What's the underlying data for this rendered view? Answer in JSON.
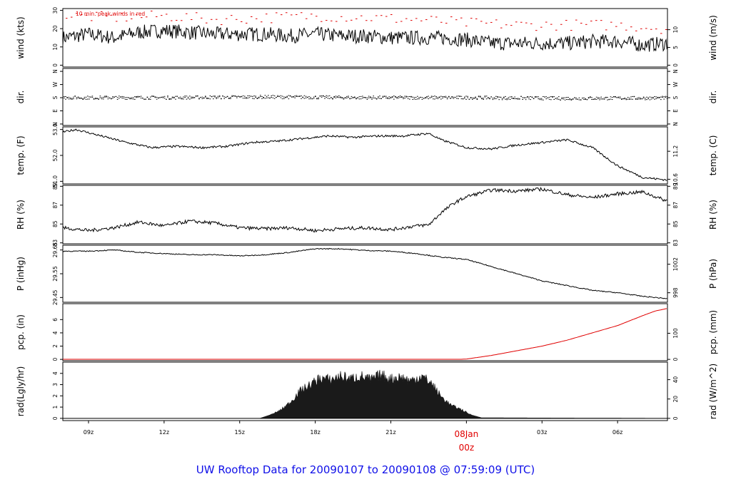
{
  "title": "UW Rooftop Data for 20090107  to  20090108 @ 07:59:09  (UTC)",
  "colors": {
    "title": "#1010e8",
    "accent": "#e00000",
    "trace": "#000000"
  },
  "x_axis": {
    "ticks": [
      "09z",
      "12z",
      "15z",
      "18z",
      "21z",
      "00z",
      "03z",
      "06z"
    ],
    "ticks_hours": [
      9,
      12,
      15,
      18,
      21,
      24,
      27,
      30
    ],
    "range_hours": [
      7.98,
      31.98
    ],
    "date_label": "08Jan",
    "date_label_time": "00z"
  },
  "chart_data": [
    {
      "type": "line",
      "key": "wind",
      "ylabel_left": "wind (kts)",
      "ylabel_right": "wind (m/s)",
      "annotation": "10 min. peak winds in red",
      "yticks_left": [
        "0",
        "10",
        "20",
        "30"
      ],
      "yticks_left_values": [
        0,
        10,
        20,
        30
      ],
      "yticks_right": [
        "0",
        "5",
        "10"
      ],
      "yticks_right_values": [
        0,
        9.72,
        19.44
      ],
      "ylim": [
        -1,
        31
      ],
      "series": [
        {
          "name": "wind speed",
          "x_hours": [
            8,
            9,
            10,
            11,
            12,
            13,
            14,
            15,
            16,
            17,
            18,
            19,
            20,
            21,
            22,
            23,
            24,
            25,
            26,
            27,
            28,
            29,
            30,
            31,
            32
          ],
          "values": [
            15,
            17,
            15,
            18,
            19,
            18,
            17,
            17,
            17,
            16,
            17,
            16,
            16,
            15,
            15,
            15,
            14,
            12,
            12,
            12,
            12,
            13,
            13,
            11,
            12
          ]
        },
        {
          "name": "10 min. peak winds",
          "x_hours": [
            8,
            10,
            12,
            14,
            16,
            18,
            20,
            22,
            24,
            26,
            28,
            30,
            32
          ],
          "values": [
            27,
            26,
            27,
            25,
            26,
            27,
            26,
            25,
            23,
            22,
            22,
            22,
            20
          ]
        }
      ]
    },
    {
      "type": "scatter",
      "key": "dir",
      "ylabel_left": "dir.",
      "ylabel_right": "dir.",
      "yticks_left": [
        "N",
        "W",
        "S",
        "E",
        "N"
      ],
      "yticks_left_values": [
        360,
        270,
        180,
        90,
        0
      ],
      "yticks_right": [
        "N",
        "W",
        "S",
        "E",
        "N"
      ],
      "yticks_right_values": [
        360,
        270,
        180,
        90,
        0
      ],
      "ylim": [
        -10,
        380
      ],
      "series": [
        {
          "name": "direction",
          "x_hours": [
            8,
            12,
            16,
            20,
            24,
            28,
            32
          ],
          "values": [
            180,
            180,
            185,
            180,
            180,
            175,
            178
          ]
        }
      ]
    },
    {
      "type": "line",
      "key": "temp",
      "ylabel_left": "temp. (F)",
      "ylabel_right": "temp. (C)",
      "yticks_left": [
        "51.0",
        "52.0",
        "53.0"
      ],
      "yticks_left_values": [
        51.0,
        52.0,
        53.0
      ],
      "yticks_right": [
        "10.6",
        "11.2"
      ],
      "yticks_right_values": [
        51.08,
        52.16
      ],
      "ylim": [
        50.9,
        53.1
      ],
      "series": [
        {
          "name": "temperature",
          "x_hours": [
            8,
            8.5,
            9.5,
            10.5,
            11.5,
            12.5,
            13.5,
            14.5,
            15.5,
            16.5,
            17.5,
            18.5,
            19.5,
            20.5,
            21.5,
            22.5,
            23,
            24,
            25,
            26,
            27,
            28,
            29,
            30,
            31,
            32
          ],
          "values": [
            52.9,
            53.0,
            52.75,
            52.5,
            52.3,
            52.35,
            52.3,
            52.35,
            52.5,
            52.55,
            52.65,
            52.75,
            52.7,
            52.75,
            52.75,
            52.85,
            52.6,
            52.3,
            52.25,
            52.4,
            52.5,
            52.6,
            52.3,
            51.6,
            51.15,
            51.05
          ]
        }
      ]
    },
    {
      "type": "line",
      "key": "rh",
      "ylabel_left": "RH (%)",
      "ylabel_right": "RH (%)",
      "yticks_left": [
        "83",
        "85",
        "87",
        "89"
      ],
      "yticks_left_values": [
        83,
        85,
        87,
        89
      ],
      "yticks_right": [
        "83",
        "85",
        "87",
        "89"
      ],
      "yticks_right_values": [
        83,
        85,
        87,
        89
      ],
      "ylim": [
        82.9,
        89.1
      ],
      "series": [
        {
          "name": "relative humidity",
          "x_hours": [
            8,
            9,
            10,
            11,
            12,
            13,
            14,
            15,
            16,
            17,
            18,
            19,
            20,
            21,
            22,
            22.5,
            23,
            23.5,
            24,
            25,
            26,
            27,
            28,
            29,
            30,
            31,
            32
          ],
          "values": [
            84.6,
            84.3,
            84.6,
            85.2,
            84.8,
            85.3,
            85.1,
            84.6,
            84.5,
            84.6,
            84.3,
            84.5,
            84.6,
            84.4,
            84.8,
            84.9,
            86.2,
            87.2,
            87.9,
            88.6,
            88.5,
            88.7,
            88.1,
            87.8,
            88.2,
            88.4,
            87.4
          ]
        }
      ]
    },
    {
      "type": "line",
      "key": "p",
      "ylabel_left": "P (inHg)",
      "ylabel_right": "P (hPa)",
      "yticks_left": [
        "29.45",
        "29.55",
        "29.65"
      ],
      "yticks_left_values": [
        29.45,
        29.55,
        29.65
      ],
      "yticks_right": [
        "998",
        "1002"
      ],
      "yticks_right_values": [
        29.47,
        29.59
      ],
      "ylim": [
        29.43,
        29.67
      ],
      "series": [
        {
          "name": "pressure",
          "x_hours": [
            8,
            9,
            10,
            11,
            12,
            13,
            14,
            15,
            16,
            17,
            18,
            19,
            20,
            21,
            22,
            23,
            24,
            25,
            26,
            27,
            28,
            29,
            30,
            31,
            32
          ],
          "values": [
            29.645,
            29.645,
            29.65,
            29.64,
            29.635,
            29.63,
            29.63,
            29.625,
            29.63,
            29.64,
            29.655,
            29.655,
            29.648,
            29.645,
            29.635,
            29.62,
            29.61,
            29.58,
            29.55,
            29.52,
            29.5,
            29.48,
            29.47,
            29.455,
            29.445
          ]
        }
      ]
    },
    {
      "type": "area",
      "key": "pcp",
      "ylabel_left": "pcp. (in)",
      "ylabel_right": "pcp. (mm)",
      "yticks_left": [
        "0",
        "2",
        "4",
        "6"
      ],
      "yticks_left_values": [
        0,
        2,
        4,
        6
      ],
      "yticks_right": [
        "0",
        "100"
      ],
      "yticks_right_values": [
        0,
        3.94
      ],
      "ylim": [
        -0.2,
        8.4
      ],
      "series": [
        {
          "name": "accumulated precipitation",
          "color": "#e00000",
          "x_hours": [
            8,
            23.8,
            24,
            25,
            26,
            27,
            28,
            29,
            30,
            31,
            31.5,
            32
          ],
          "values": [
            0.02,
            0.02,
            0.05,
            0.6,
            1.3,
            2.0,
            2.9,
            4.0,
            5.1,
            6.6,
            7.3,
            7.7
          ]
        }
      ]
    },
    {
      "type": "area",
      "key": "rad",
      "ylabel_left": "rad(Lgly/hr)",
      "ylabel_right": "rad (W/m^2)",
      "yticks_left": [
        "0",
        "1",
        "2",
        "3",
        "4"
      ],
      "yticks_left_values": [
        0,
        1,
        2,
        3,
        4
      ],
      "yticks_right": [
        "0",
        "20",
        "40"
      ],
      "yticks_right_values": [
        0,
        1.72,
        3.44
      ],
      "ylim": [
        -0.2,
        5.0
      ],
      "series": [
        {
          "name": "solar radiation",
          "x_hours": [
            8,
            15.8,
            16.2,
            16.6,
            17,
            17.4,
            17.8,
            18.2,
            18.6,
            19,
            19.4,
            19.8,
            20.2,
            20.6,
            21,
            21.4,
            21.8,
            22.2,
            22.6,
            23,
            23.4,
            23.8,
            24.2,
            24.6,
            32
          ],
          "values": [
            0,
            0,
            0.3,
            0.8,
            1.6,
            2.8,
            3.4,
            4.1,
            3.9,
            4.3,
            4.0,
            4.3,
            3.9,
            4.4,
            4.0,
            4.2,
            3.8,
            4.3,
            3.6,
            2.2,
            1.3,
            0.9,
            0.3,
            0.05,
            0
          ]
        }
      ]
    }
  ]
}
